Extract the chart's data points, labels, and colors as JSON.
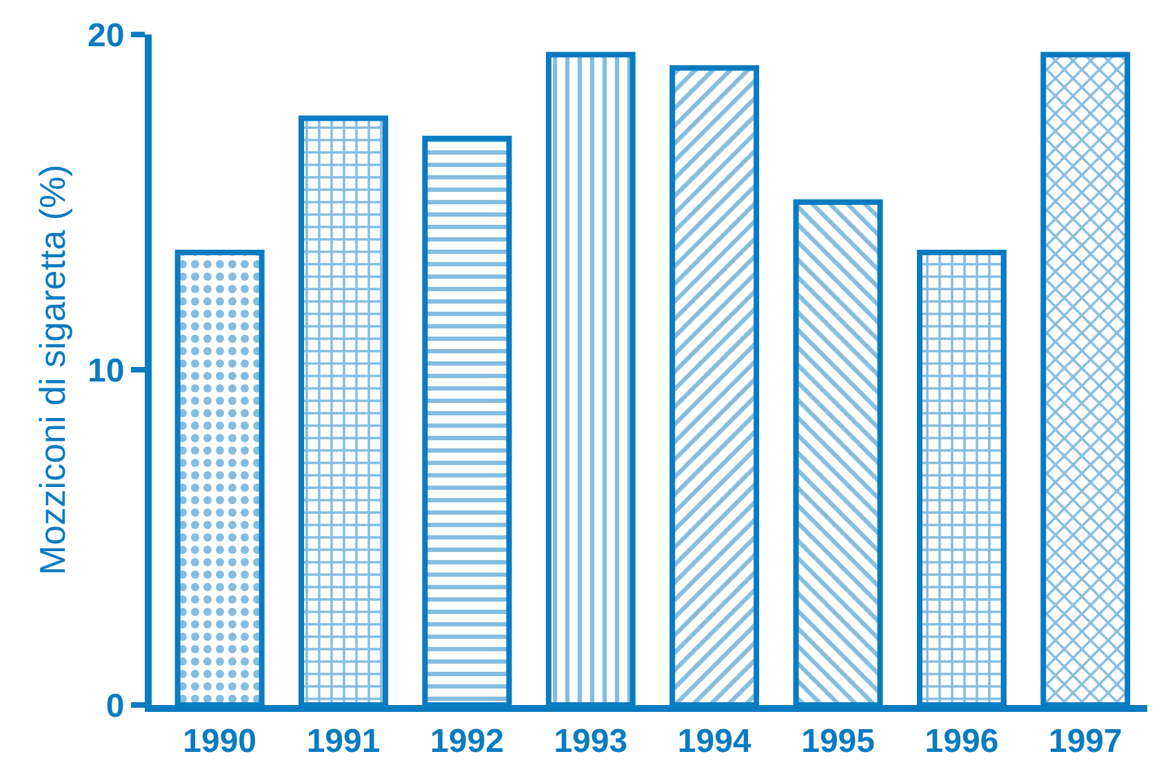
{
  "chart_data": {
    "type": "bar",
    "ylabel": "Mozziconi di sigaretta (%)",
    "categories": [
      "1990",
      "1991",
      "1992",
      "1993",
      "1994",
      "1995",
      "1996",
      "1997"
    ],
    "values": [
      13.5,
      17.5,
      16.9,
      19.4,
      19.0,
      15.0,
      13.5,
      19.4
    ],
    "color": "#0a7bc1",
    "ylim": [
      0,
      20
    ],
    "yticks": [
      0,
      10,
      20
    ],
    "grid": false,
    "legend": false
  }
}
